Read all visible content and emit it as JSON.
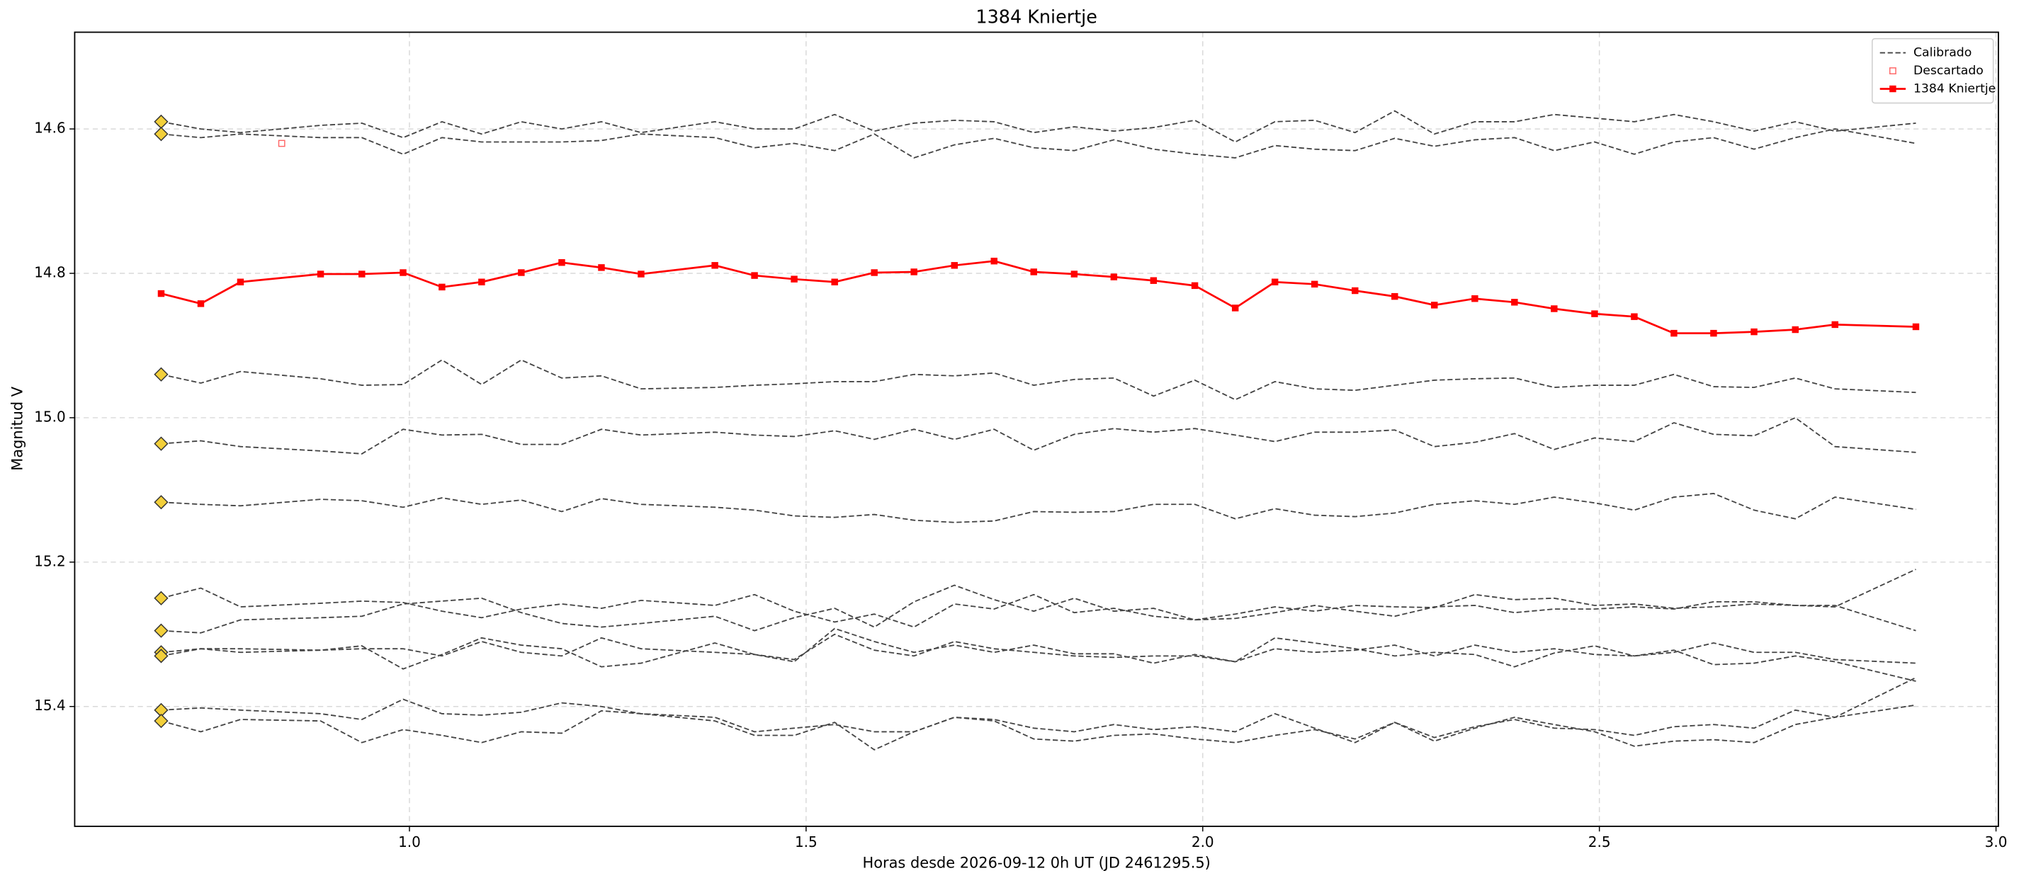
{
  "chart_data": {
    "type": "line",
    "title": "1384 Kniertje",
    "xlabel": "Horas desde 2026-09-12 0h UT (JD 2461295.5)",
    "ylabel": "Magnitud V",
    "xlim": [
      0.578,
      3.003
    ],
    "ylim": [
      15.566,
      14.466
    ],
    "xticks": [
      {
        "value": 1.0,
        "label": "1.0"
      },
      {
        "value": 1.5,
        "label": "1.5"
      },
      {
        "value": 2.0,
        "label": "2.0"
      },
      {
        "value": 2.5,
        "label": "2.5"
      },
      {
        "value": 3.0,
        "label": "3.0"
      }
    ],
    "yticks": [
      14.6,
      14.8,
      {
        "value": 15.0,
        "label": "15.0"
      },
      15.2,
      15.4
    ],
    "grid": true,
    "legend": "upper right",
    "x": [
      0.687,
      0.737,
      0.787,
      0.888,
      0.94,
      0.992,
      1.041,
      1.091,
      1.141,
      1.192,
      1.242,
      1.292,
      1.385,
      1.435,
      1.485,
      1.536,
      1.586,
      1.636,
      1.687,
      1.737,
      1.787,
      1.838,
      1.888,
      1.938,
      1.99,
      2.041,
      2.091,
      2.141,
      2.192,
      2.242,
      2.292,
      2.343,
      2.393,
      2.443,
      2.494,
      2.544,
      2.594,
      2.644,
      2.695,
      2.747,
      2.797,
      2.899
    ],
    "series": [
      {
        "name": "Calibrado",
        "color": "#444444",
        "linestyle": "dashed",
        "first_marker": "diamond",
        "first_marker_color": "#f2cf3a",
        "values": [
          [
            14.59,
            14.6,
            14.605,
            14.595,
            14.592,
            14.612,
            14.59,
            14.607,
            14.59,
            14.6,
            14.59,
            14.605,
            14.59,
            14.6,
            14.6,
            14.58,
            14.603,
            14.592,
            14.588,
            14.59,
            14.605,
            14.597,
            14.603,
            14.598,
            14.588,
            14.618,
            14.59,
            14.588,
            14.605,
            14.575,
            14.607,
            14.59,
            14.59,
            14.58,
            14.585,
            14.59,
            14.58,
            14.59,
            14.603,
            14.59,
            14.603,
            14.592
          ],
          [
            14.607,
            14.612,
            14.607,
            14.612,
            14.612,
            14.635,
            14.612,
            14.618,
            14.618,
            14.618,
            14.616,
            14.607,
            14.612,
            14.626,
            14.62,
            14.63,
            14.607,
            14.64,
            14.622,
            14.613,
            14.626,
            14.63,
            14.615,
            14.628,
            14.635,
            14.64,
            14.623,
            14.628,
            14.63,
            14.613,
            14.624,
            14.615,
            14.612,
            14.63,
            14.618,
            14.635,
            14.618,
            14.612,
            14.628,
            14.612,
            14.6,
            14.62
          ],
          [
            14.94,
            14.952,
            14.936,
            14.946,
            14.955,
            14.954,
            14.92,
            14.954,
            14.92,
            14.945,
            14.942,
            14.96,
            14.958,
            14.955,
            14.953,
            14.95,
            14.95,
            14.94,
            14.942,
            14.938,
            14.955,
            14.947,
            14.945,
            14.97,
            14.948,
            14.975,
            14.95,
            14.96,
            14.962,
            14.955,
            14.948,
            14.946,
            14.945,
            14.958,
            14.955,
            14.955,
            14.94,
            14.957,
            14.958,
            14.945,
            14.96,
            14.965
          ],
          [
            15.036,
            15.032,
            15.04,
            15.046,
            15.05,
            15.016,
            15.024,
            15.023,
            15.037,
            15.037,
            15.016,
            15.024,
            15.02,
            15.024,
            15.026,
            15.018,
            15.03,
            15.016,
            15.03,
            15.016,
            15.045,
            15.023,
            15.015,
            15.02,
            15.015,
            15.024,
            15.033,
            15.02,
            15.02,
            15.017,
            15.04,
            15.034,
            15.022,
            15.044,
            15.028,
            15.033,
            15.007,
            15.023,
            15.025,
            15.0,
            15.04,
            15.048
          ],
          [
            15.117,
            15.12,
            15.122,
            15.113,
            15.115,
            15.124,
            15.111,
            15.12,
            15.114,
            15.13,
            15.112,
            15.12,
            15.124,
            15.128,
            15.136,
            15.138,
            15.134,
            15.142,
            15.145,
            15.143,
            15.13,
            15.131,
            15.13,
            15.12,
            15.12,
            15.14,
            15.126,
            15.135,
            15.137,
            15.132,
            15.12,
            15.115,
            15.12,
            15.11,
            15.118,
            15.128,
            15.11,
            15.105,
            15.128,
            15.14,
            15.11,
            15.127
          ],
          [
            15.25,
            15.236,
            15.262,
            15.257,
            15.254,
            15.256,
            15.268,
            15.277,
            15.265,
            15.258,
            15.264,
            15.253,
            15.26,
            15.245,
            15.268,
            15.283,
            15.272,
            15.29,
            15.258,
            15.265,
            15.245,
            15.27,
            15.264,
            15.275,
            15.28,
            15.272,
            15.262,
            15.268,
            15.26,
            15.262,
            15.263,
            15.245,
            15.252,
            15.25,
            15.26,
            15.258,
            15.264,
            15.262,
            15.258,
            15.26,
            15.262,
            15.21
          ],
          [
            15.295,
            15.298,
            15.28,
            15.277,
            15.275,
            15.258,
            15.254,
            15.25,
            15.27,
            15.285,
            15.29,
            15.285,
            15.275,
            15.295,
            15.277,
            15.264,
            15.29,
            15.255,
            15.232,
            15.252,
            15.268,
            15.25,
            15.268,
            15.264,
            15.28,
            15.278,
            15.27,
            15.26,
            15.268,
            15.275,
            15.262,
            15.26,
            15.27,
            15.265,
            15.265,
            15.262,
            15.265,
            15.255,
            15.255,
            15.26,
            15.26,
            15.295
          ],
          [
            15.325,
            15.32,
            15.325,
            15.322,
            15.32,
            15.32,
            15.33,
            15.31,
            15.325,
            15.33,
            15.305,
            15.32,
            15.325,
            15.328,
            15.335,
            15.3,
            15.322,
            15.33,
            15.31,
            15.32,
            15.325,
            15.33,
            15.332,
            15.33,
            15.33,
            15.338,
            15.32,
            15.325,
            15.322,
            15.315,
            15.33,
            15.315,
            15.325,
            15.32,
            15.328,
            15.33,
            15.325,
            15.312,
            15.325,
            15.325,
            15.335,
            15.34
          ],
          [
            15.33,
            15.32,
            15.32,
            15.322,
            15.316,
            15.348,
            15.328,
            15.305,
            15.315,
            15.32,
            15.345,
            15.34,
            15.312,
            15.328,
            15.338,
            15.292,
            15.31,
            15.325,
            15.315,
            15.325,
            15.315,
            15.327,
            15.327,
            15.34,
            15.328,
            15.338,
            15.305,
            15.312,
            15.32,
            15.33,
            15.325,
            15.328,
            15.345,
            15.326,
            15.316,
            15.33,
            15.322,
            15.342,
            15.34,
            15.33,
            15.338,
            15.365
          ],
          [
            15.405,
            15.402,
            15.405,
            15.41,
            15.418,
            15.39,
            15.41,
            15.412,
            15.408,
            15.395,
            15.4,
            15.41,
            15.415,
            15.435,
            15.43,
            15.425,
            15.435,
            15.435,
            15.415,
            15.418,
            15.43,
            15.435,
            15.425,
            15.432,
            15.428,
            15.435,
            15.41,
            15.43,
            15.45,
            15.422,
            15.443,
            15.428,
            15.418,
            15.43,
            15.432,
            15.44,
            15.428,
            15.425,
            15.43,
            15.405,
            15.415,
            15.398
          ],
          [
            15.42,
            15.435,
            15.418,
            15.42,
            15.45,
            15.432,
            15.44,
            15.45,
            15.435,
            15.437,
            15.406,
            15.41,
            15.42,
            15.44,
            15.44,
            15.422,
            15.46,
            15.435,
            15.415,
            15.42,
            15.445,
            15.448,
            15.44,
            15.438,
            15.445,
            15.45,
            15.44,
            15.432,
            15.445,
            15.422,
            15.448,
            15.43,
            15.415,
            15.425,
            15.435,
            15.455,
            15.448,
            15.446,
            15.45,
            15.425,
            15.415,
            15.36
          ]
        ]
      },
      {
        "name": "Descartado",
        "color": "#ff6666",
        "marker": "square-open",
        "x": [
          0.839
        ],
        "values": [
          14.62
        ]
      },
      {
        "name": "1384 Kniertje",
        "color": "#ff0000",
        "marker": "square",
        "values": [
          14.828,
          14.842,
          14.812,
          14.801,
          14.801,
          14.799,
          14.819,
          14.812,
          14.799,
          14.785,
          14.792,
          14.801,
          14.789,
          14.803,
          14.808,
          14.812,
          14.799,
          14.798,
          14.789,
          14.783,
          14.798,
          14.801,
          14.805,
          14.81,
          14.817,
          14.848,
          14.812,
          14.815,
          14.824,
          14.832,
          14.844,
          14.835,
          14.84,
          14.849,
          14.856,
          14.86,
          14.883,
          14.883,
          14.881,
          14.878,
          14.871,
          14.874
        ]
      }
    ]
  }
}
